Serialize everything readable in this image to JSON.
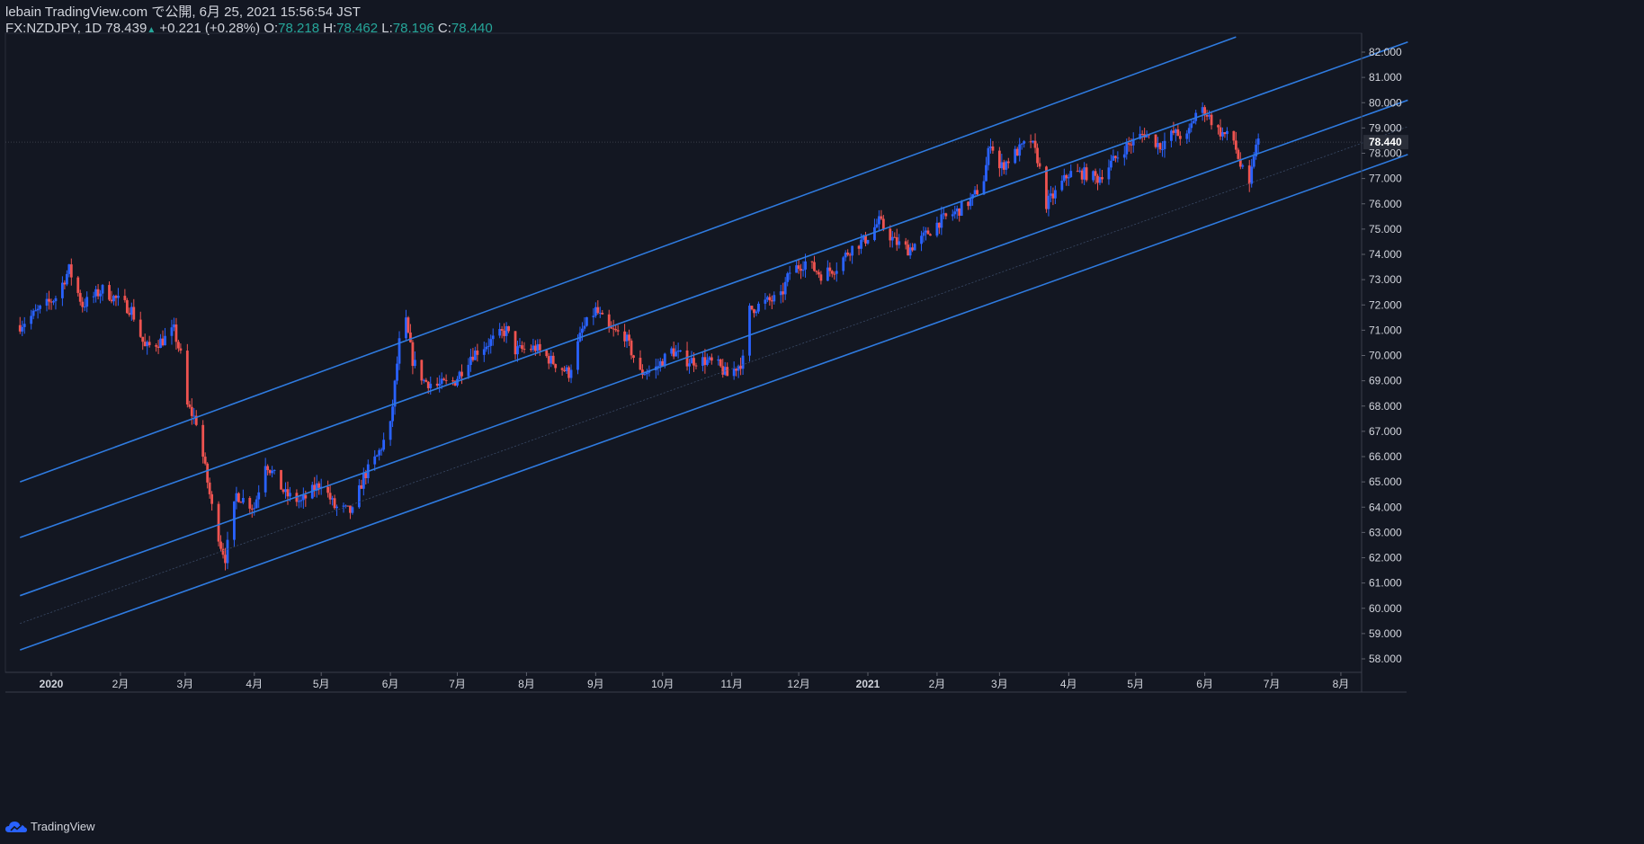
{
  "header": {
    "line1": "lebain TradingView.com で公開, 6月 25, 2021 15:56:54 JST",
    "symbol": "FX:NZDJPY, 1D",
    "last": "78.439",
    "up_glyph": "▲",
    "change": "+0.221 (+0.28%)",
    "o_label": "O:",
    "o": "78.218",
    "h_label": "H:",
    "h": "78.462",
    "l_label": "L:",
    "l": "78.196",
    "c_label": "C:",
    "c": "78.440"
  },
  "price_label": "78.440",
  "footer": {
    "brand": "TradingView"
  },
  "colors": {
    "background": "#131722",
    "up": "#2962ff",
    "down": "#ef5350",
    "channel": "#2f7be0",
    "text": "#d1d4dc",
    "teal": "#26a69a"
  },
  "chart_data": {
    "type": "candlestick",
    "symbol": "FX:NZDJPY",
    "interval": "1D",
    "last_price": 78.44,
    "ylim": [
      57.5,
      82.5
    ],
    "y_ticks": [
      "58.000",
      "59.000",
      "60.000",
      "61.000",
      "62.000",
      "63.000",
      "64.000",
      "65.000",
      "66.000",
      "67.000",
      "68.000",
      "69.000",
      "70.000",
      "71.000",
      "72.000",
      "73.000",
      "74.000",
      "75.000",
      "76.000",
      "77.000",
      "78.000",
      "79.000",
      "80.000",
      "81.000",
      "82.000"
    ],
    "x_labels": [
      {
        "label": "2020",
        "date": "2020-01-01",
        "bold": true
      },
      {
        "label": "2月",
        "date": "2020-02-01"
      },
      {
        "label": "3月",
        "date": "2020-03-01"
      },
      {
        "label": "4月",
        "date": "2020-04-01"
      },
      {
        "label": "5月",
        "date": "2020-05-01"
      },
      {
        "label": "6月",
        "date": "2020-06-01"
      },
      {
        "label": "7月",
        "date": "2020-07-01"
      },
      {
        "label": "8月",
        "date": "2020-08-01"
      },
      {
        "label": "9月",
        "date": "2020-09-01"
      },
      {
        "label": "10月",
        "date": "2020-10-01"
      },
      {
        "label": "11月",
        "date": "2020-11-01"
      },
      {
        "label": "12月",
        "date": "2020-12-01"
      },
      {
        "label": "2021",
        "date": "2021-01-01",
        "bold": true
      },
      {
        "label": "2月",
        "date": "2021-02-01"
      },
      {
        "label": "3月",
        "date": "2021-03-01"
      },
      {
        "label": "4月",
        "date": "2021-04-01"
      },
      {
        "label": "5月",
        "date": "2021-05-01"
      },
      {
        "label": "6月",
        "date": "2021-06-01"
      },
      {
        "label": "7月",
        "date": "2021-07-01"
      },
      {
        "label": "8月",
        "date": "2021-08-01"
      }
    ],
    "anchors": [
      {
        "date": "2019-12-18",
        "close": 71.2
      },
      {
        "date": "2020-01-03",
        "close": 72.3
      },
      {
        "date": "2020-01-09",
        "close": 73.4
      },
      {
        "date": "2020-01-15",
        "close": 72.0
      },
      {
        "date": "2020-01-24",
        "close": 72.6
      },
      {
        "date": "2020-02-06",
        "close": 71.8
      },
      {
        "date": "2020-02-12",
        "close": 70.3
      },
      {
        "date": "2020-02-20",
        "close": 70.6
      },
      {
        "date": "2020-02-25",
        "close": 71.0
      },
      {
        "date": "2020-02-28",
        "close": 70.0
      },
      {
        "date": "2020-03-02",
        "close": 68.0
      },
      {
        "date": "2020-03-06",
        "close": 67.4
      },
      {
        "date": "2020-03-09",
        "close": 66.0
      },
      {
        "date": "2020-03-13",
        "close": 64.0
      },
      {
        "date": "2020-03-17",
        "close": 62.5
      },
      {
        "date": "2020-03-19",
        "close": 62.0
      },
      {
        "date": "2020-03-24",
        "close": 64.5
      },
      {
        "date": "2020-04-01",
        "close": 64.0
      },
      {
        "date": "2020-04-06",
        "close": 65.8
      },
      {
        "date": "2020-04-15",
        "close": 64.5
      },
      {
        "date": "2020-04-22",
        "close": 64.2
      },
      {
        "date": "2020-05-01",
        "close": 65.0
      },
      {
        "date": "2020-05-07",
        "close": 64.0
      },
      {
        "date": "2020-05-15",
        "close": 63.8
      },
      {
        "date": "2020-05-20",
        "close": 65.2
      },
      {
        "date": "2020-05-26",
        "close": 66.0
      },
      {
        "date": "2020-06-01",
        "close": 67.2
      },
      {
        "date": "2020-06-05",
        "close": 70.5
      },
      {
        "date": "2020-06-08",
        "close": 71.3
      },
      {
        "date": "2020-06-11",
        "close": 69.8
      },
      {
        "date": "2020-06-16",
        "close": 69.0
      },
      {
        "date": "2020-06-22",
        "close": 68.8
      },
      {
        "date": "2020-06-30",
        "close": 69.0
      },
      {
        "date": "2020-07-07",
        "close": 70.0
      },
      {
        "date": "2020-07-15",
        "close": 70.5
      },
      {
        "date": "2020-07-23",
        "close": 71.0
      },
      {
        "date": "2020-07-27",
        "close": 70.2
      },
      {
        "date": "2020-08-05",
        "close": 70.3
      },
      {
        "date": "2020-08-12",
        "close": 69.8
      },
      {
        "date": "2020-08-20",
        "close": 69.3
      },
      {
        "date": "2020-08-26",
        "close": 71.0
      },
      {
        "date": "2020-09-01",
        "close": 71.8
      },
      {
        "date": "2020-09-07",
        "close": 71.0
      },
      {
        "date": "2020-09-14",
        "close": 70.8
      },
      {
        "date": "2020-09-21",
        "close": 69.3
      },
      {
        "date": "2020-09-28",
        "close": 69.5
      },
      {
        "date": "2020-10-05",
        "close": 70.2
      },
      {
        "date": "2020-10-12",
        "close": 69.8
      },
      {
        "date": "2020-10-20",
        "close": 69.8
      },
      {
        "date": "2020-10-26",
        "close": 69.6
      },
      {
        "date": "2020-10-30",
        "close": 69.2
      },
      {
        "date": "2020-11-06",
        "close": 69.8
      },
      {
        "date": "2020-11-09",
        "close": 71.8
      },
      {
        "date": "2020-11-16",
        "close": 72.1
      },
      {
        "date": "2020-11-23",
        "close": 72.3
      },
      {
        "date": "2020-11-27",
        "close": 73.3
      },
      {
        "date": "2020-12-04",
        "close": 73.7
      },
      {
        "date": "2020-12-11",
        "close": 73.2
      },
      {
        "date": "2020-12-18",
        "close": 73.5
      },
      {
        "date": "2020-12-24",
        "close": 74.2
      },
      {
        "date": "2020-12-31",
        "close": 74.6
      },
      {
        "date": "2021-01-06",
        "close": 75.3
      },
      {
        "date": "2021-01-13",
        "close": 74.5
      },
      {
        "date": "2021-01-19",
        "close": 74.2
      },
      {
        "date": "2021-01-25",
        "close": 74.6
      },
      {
        "date": "2021-02-02",
        "close": 75.3
      },
      {
        "date": "2021-02-10",
        "close": 75.7
      },
      {
        "date": "2021-02-17",
        "close": 76.2
      },
      {
        "date": "2021-02-22",
        "close": 77.0
      },
      {
        "date": "2021-02-25",
        "close": 78.5
      },
      {
        "date": "2021-03-01",
        "close": 77.4
      },
      {
        "date": "2021-03-08",
        "close": 78.0
      },
      {
        "date": "2021-03-15",
        "close": 78.5
      },
      {
        "date": "2021-03-18",
        "close": 77.8
      },
      {
        "date": "2021-03-22",
        "close": 76.0
      },
      {
        "date": "2021-03-25",
        "close": 76.3
      },
      {
        "date": "2021-04-01",
        "close": 77.2
      },
      {
        "date": "2021-04-08",
        "close": 77.2
      },
      {
        "date": "2021-04-14",
        "close": 77.0
      },
      {
        "date": "2021-04-20",
        "close": 77.6
      },
      {
        "date": "2021-04-26",
        "close": 78.2
      },
      {
        "date": "2021-05-05",
        "close": 78.8
      },
      {
        "date": "2021-05-12",
        "close": 78.3
      },
      {
        "date": "2021-05-18",
        "close": 78.8
      },
      {
        "date": "2021-05-24",
        "close": 78.6
      },
      {
        "date": "2021-05-28",
        "close": 79.6
      },
      {
        "date": "2021-06-01",
        "close": 79.7
      },
      {
        "date": "2021-06-07",
        "close": 78.9
      },
      {
        "date": "2021-06-14",
        "close": 78.5
      },
      {
        "date": "2021-06-17",
        "close": 77.5
      },
      {
        "date": "2021-06-21",
        "close": 76.6
      },
      {
        "date": "2021-06-23",
        "close": 78.0
      },
      {
        "date": "2021-06-25",
        "close": 78.44
      }
    ],
    "channel_lines": [
      {
        "name": "outer-upper",
        "p1": {
          "date": "2019-12-18",
          "price": 65.0
        },
        "p2": {
          "date": "2021-06-15",
          "price": 82.6
        }
      },
      {
        "name": "upper",
        "p1": {
          "date": "2019-12-18",
          "price": 62.8
        },
        "p2": {
          "date": "2021-08-31",
          "price": 82.4
        }
      },
      {
        "name": "middle",
        "p1": {
          "date": "2019-12-18",
          "price": 60.5
        },
        "p2": {
          "date": "2021-08-31",
          "price": 80.1
        }
      },
      {
        "name": "lower",
        "p1": {
          "date": "2019-12-18",
          "price": 58.35
        },
        "p2": {
          "date": "2021-08-31",
          "price": 77.95
        }
      },
      {
        "name": "median",
        "p1": {
          "date": "2019-12-18",
          "price": 59.4
        },
        "p2": {
          "date": "2021-08-31",
          "price": 79.05
        },
        "thin": true
      }
    ]
  }
}
